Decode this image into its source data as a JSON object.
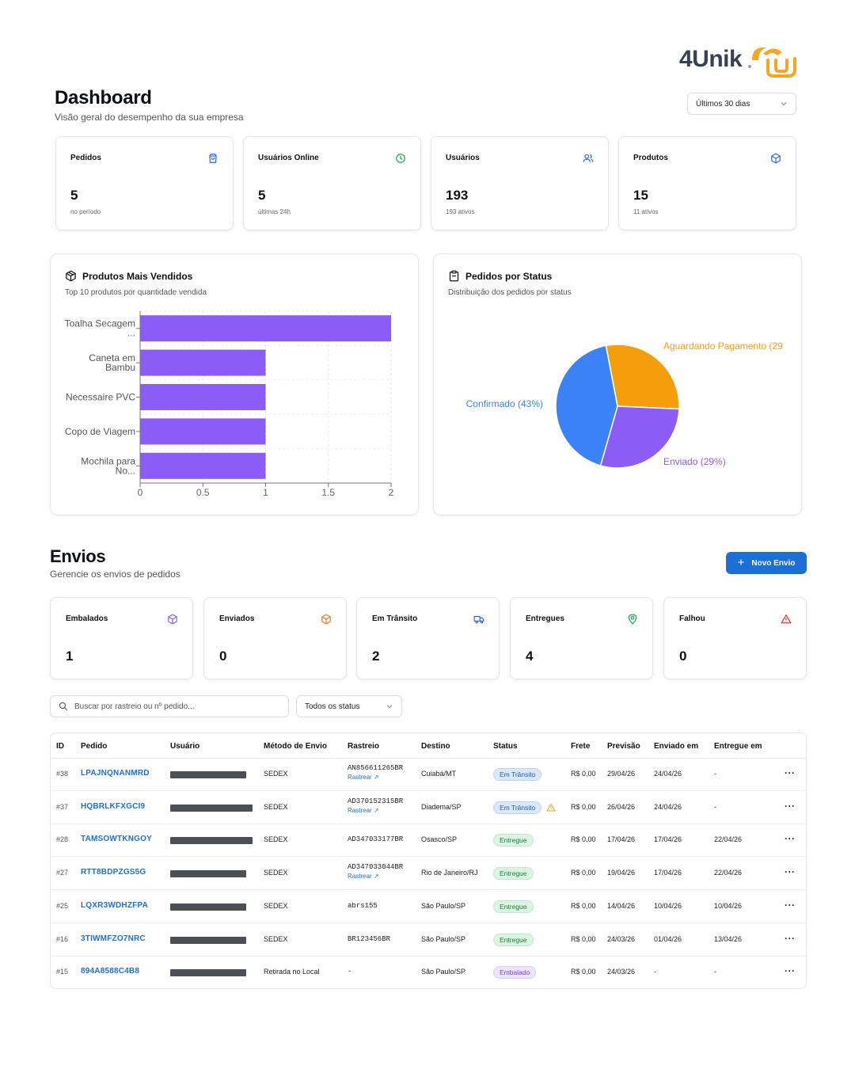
{
  "brand": {
    "name": "4Unik",
    "accent": "#f5a623"
  },
  "dashboard": {
    "title": "Dashboard",
    "subtitle": "Visão geral do desempenho da sua empresa",
    "period": "Últimos 30 dias"
  },
  "stats": [
    {
      "label": "Pedidos",
      "value": "5",
      "note": "no período",
      "icon": "shopping-bag-icon",
      "color": "#2563eb"
    },
    {
      "label": "Usuários Online",
      "value": "5",
      "note": "últimas 24h",
      "icon": "clock-icon",
      "color": "#16a34a"
    },
    {
      "label": "Usuários",
      "value": "193",
      "note": "193 ativos",
      "icon": "users-icon",
      "color": "#2563eb"
    },
    {
      "label": "Produtos",
      "value": "15",
      "note": "11 ativos",
      "icon": "package-icon",
      "color": "#2563eb"
    }
  ],
  "top_products": {
    "title": "Produtos Mais Vendidos",
    "subtitle": "Top 10 produtos por quantidade vendida",
    "icon": "package-icon"
  },
  "orders_status": {
    "title": "Pedidos por Status",
    "subtitle": "Distribuição dos pedidos por status",
    "icon": "clipboard-icon"
  },
  "chart_data": [
    {
      "type": "bar",
      "orientation": "horizontal",
      "categories": [
        [
          "Toalha Secagem",
          "..."
        ],
        [
          "Caneta em",
          "Bambu"
        ],
        [
          "Necessaire PVC"
        ],
        [
          "Copo de Viagem"
        ],
        [
          "Mochila para",
          "No..."
        ]
      ],
      "values": [
        2,
        1,
        1,
        1,
        1
      ],
      "xlim": [
        0,
        2
      ],
      "xticks": [
        "0",
        "0.5",
        "1",
        "1.5",
        "2"
      ],
      "color": "#8b5cf6",
      "grid": true
    },
    {
      "type": "pie",
      "slices": [
        {
          "label": "Aguardando Pagamento (29",
          "value": 29,
          "color": "#f59e0b"
        },
        {
          "label": "Enviado (29%)",
          "value": 29,
          "color": "#8b5cf6"
        },
        {
          "label": "Confirmado (43%)",
          "value": 43,
          "color": "#3b82f6"
        }
      ]
    }
  ],
  "envios": {
    "title": "Envios",
    "subtitle": "Gerencie os envios de pedidos",
    "new_button": "Novo Envio",
    "cards": [
      {
        "label": "Embalados",
        "value": "1",
        "icon": "package-icon",
        "color": "#8b5cf6"
      },
      {
        "label": "Enviados",
        "value": "0",
        "icon": "package-icon",
        "color": "#f97316"
      },
      {
        "label": "Em Trânsito",
        "value": "2",
        "icon": "truck-icon",
        "color": "#2563eb"
      },
      {
        "label": "Entregues",
        "value": "4",
        "icon": "map-pin-icon",
        "color": "#16a34a"
      },
      {
        "label": "Falhou",
        "value": "0",
        "icon": "alert-triangle-icon",
        "color": "#dc2626"
      }
    ],
    "search_placeholder": "Buscar por rastreio ou nº pedido...",
    "status_filter": "Todos os status",
    "columns": [
      "ID",
      "Pedido",
      "Usuário",
      "Método de Envio",
      "Rastreio",
      "Destino",
      "Status",
      "Frete",
      "Previsão",
      "Enviado em",
      "Entregue em"
    ],
    "track_link": "Rastrear ↗",
    "rows": [
      {
        "id": "#38",
        "order": "LPAJNQNANMRD",
        "method": "SEDEX",
        "tracking": "AN856611265BR",
        "link": true,
        "dest": "Cuiabá/MT",
        "status": "Em Trânsito",
        "kind": "transit",
        "warn": false,
        "freight": "R$ 0,00",
        "forecast": "29/04/26",
        "sent": "24/04/26",
        "delivered": "-"
      },
      {
        "id": "#37",
        "order": "HQBRLKFXGCI9",
        "method": "SEDEX",
        "tracking": "AD370152315BR",
        "link": true,
        "dest": "Diadema/SP",
        "status": "Em Trânsito",
        "kind": "transit",
        "warn": true,
        "freight": "R$ 0,00",
        "forecast": "26/04/26",
        "sent": "24/04/26",
        "delivered": "-"
      },
      {
        "id": "#28",
        "order": "TAMSOWTKNGOY",
        "method": "SEDEX",
        "tracking": "AD347033177BR",
        "link": false,
        "dest": "Osasco/SP",
        "status": "Entregue",
        "kind": "entregue",
        "warn": false,
        "freight": "R$ 0,00",
        "forecast": "17/04/26",
        "sent": "17/04/26",
        "delivered": "22/04/26"
      },
      {
        "id": "#27",
        "order": "RTT8BDPZGS5G",
        "method": "SEDEX",
        "tracking": "AD347033044BR",
        "link": true,
        "dest": "Rio de Janeiro/RJ",
        "status": "Entregue",
        "kind": "entregue",
        "warn": false,
        "freight": "R$ 0,00",
        "forecast": "19/04/26",
        "sent": "17/04/26",
        "delivered": "22/04/26"
      },
      {
        "id": "#25",
        "order": "LQXR3WDHZFPA",
        "method": "SEDEX",
        "tracking": "abrs155",
        "link": false,
        "dest": "São Paulo/SP",
        "status": "Entregue",
        "kind": "entregue",
        "warn": false,
        "freight": "R$ 0,00",
        "forecast": "14/04/26",
        "sent": "10/04/26",
        "delivered": "10/04/26"
      },
      {
        "id": "#16",
        "order": "3TIWMFZO7NRC",
        "method": "SEDEX",
        "tracking": "BR123456BR",
        "link": false,
        "dest": "São Paulo/SP",
        "status": "Entregue",
        "kind": "entregue",
        "warn": false,
        "freight": "R$ 0,00",
        "forecast": "24/03/26",
        "sent": "01/04/26",
        "delivered": "13/04/26"
      },
      {
        "id": "#15",
        "order": "894A8588C4B8",
        "method": "Retirada no Local",
        "tracking": "-",
        "link": false,
        "dest": "São Paulo/SP",
        "status": "Embalado",
        "kind": "embalado",
        "warn": false,
        "freight": "R$ 0,00",
        "forecast": "24/03/26",
        "sent": "-",
        "delivered": "-"
      }
    ]
  }
}
